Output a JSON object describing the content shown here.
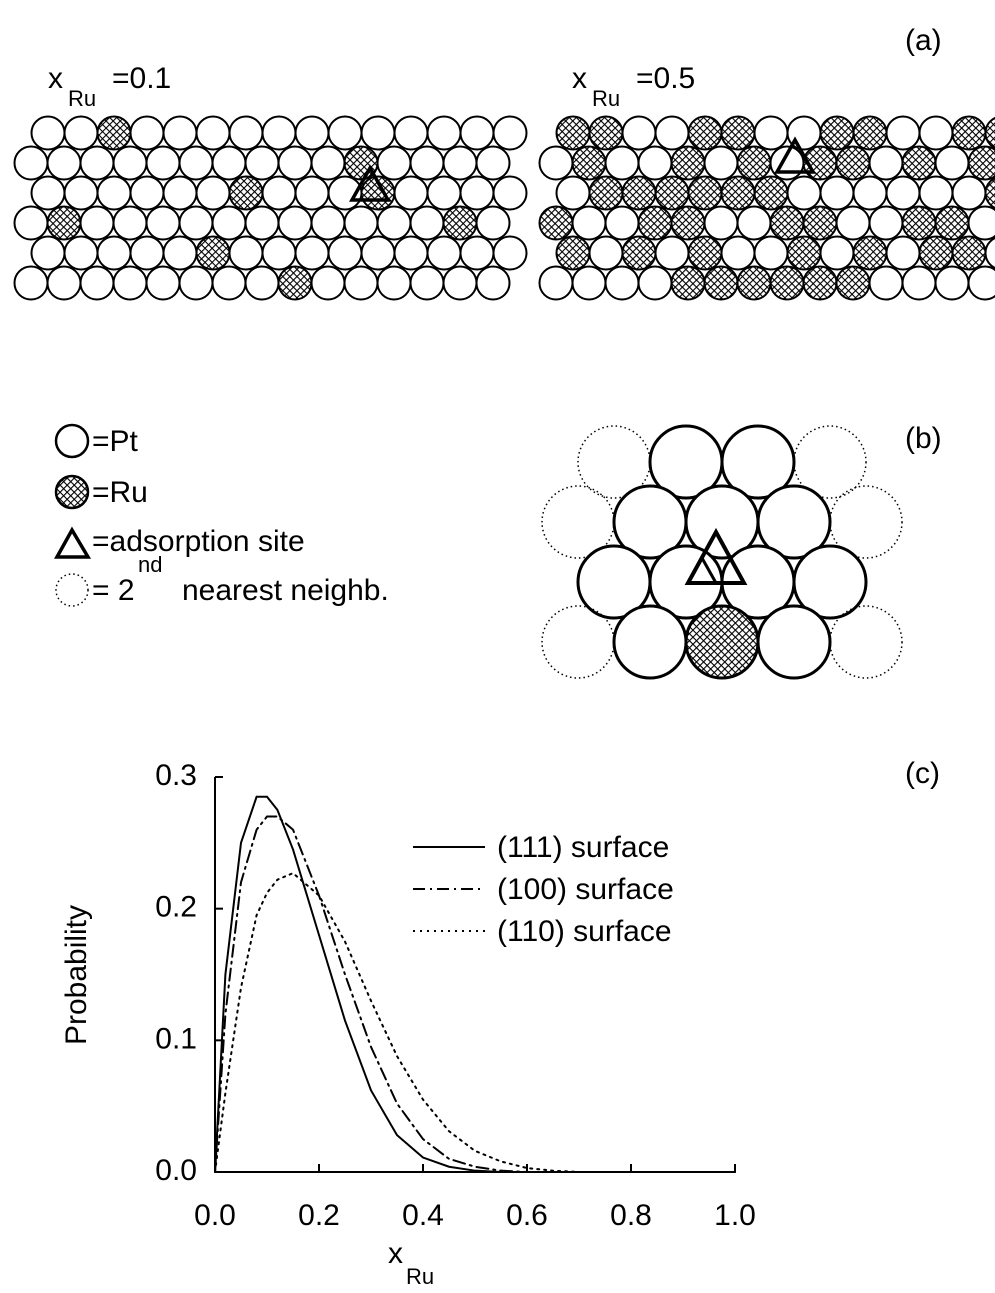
{
  "panel_a": {
    "label": "(a)",
    "left_title": [
      "x",
      "Ru",
      "=0.1"
    ],
    "right_title": [
      "x",
      "Ru",
      "=0.5"
    ]
  },
  "panel_b": {
    "label": "(b)",
    "legend": [
      [
        "=Pt"
      ],
      [
        "=Ru"
      ],
      [
        "=adsorption site"
      ],
      [
        "= 2",
        "nd",
        "nearest neighb."
      ]
    ]
  },
  "chart_data": {
    "type": "line",
    "label": "(c)",
    "xlabel": [
      "x",
      "Ru"
    ],
    "ylabel": "Probability",
    "x": [
      0,
      0.02,
      0.05,
      0.08,
      0.1,
      0.12,
      0.15,
      0.2,
      0.25,
      0.3,
      0.35,
      0.4,
      0.45,
      0.5,
      0.55,
      0.6,
      0.65,
      0.7,
      0.8,
      0.9,
      1.0
    ],
    "series": [
      {
        "name": "(111) surface",
        "color": "#000000",
        "dash": "solid",
        "values": [
          0,
          0.15,
          0.25,
          0.285,
          0.285,
          0.275,
          0.245,
          0.18,
          0.115,
          0.062,
          0.028,
          0.011,
          0.004,
          0.001,
          0,
          0,
          0,
          0,
          0,
          0,
          0
        ]
      },
      {
        "name": "(100) surface",
        "color": "#000000",
        "dash": "dashdot",
        "values": [
          0,
          0.12,
          0.22,
          0.26,
          0.27,
          0.27,
          0.26,
          0.21,
          0.15,
          0.095,
          0.052,
          0.025,
          0.01,
          0.004,
          0.001,
          0,
          0,
          0,
          0,
          0,
          0
        ]
      },
      {
        "name": "(110) surface",
        "color": "#000000",
        "dash": "dotted",
        "values": [
          0,
          0.06,
          0.14,
          0.195,
          0.212,
          0.222,
          0.227,
          0.21,
          0.175,
          0.13,
          0.088,
          0.055,
          0.031,
          0.016,
          0.008,
          0.003,
          0.001,
          0,
          0,
          0,
          0
        ]
      }
    ],
    "xlim": [
      0,
      1.0
    ],
    "ylim": [
      0,
      0.3
    ],
    "xticks": [
      {
        "value": 0,
        "label": "0.0"
      },
      {
        "value": 0.2,
        "label": "0.2"
      },
      {
        "value": 0.4,
        "label": "0.4"
      },
      {
        "value": 0.6,
        "label": "0.6"
      },
      {
        "value": 0.8,
        "label": "0.8"
      },
      {
        "value": 1.0,
        "label": "1.0"
      }
    ],
    "yticks": [
      {
        "value": 0,
        "label": "0.0"
      },
      {
        "value": 0.1,
        "label": "0.1"
      },
      {
        "value": 0.2,
        "label": "0.2"
      },
      {
        "value": 0.3,
        "label": "0.3"
      }
    ],
    "legend": "upper right"
  }
}
